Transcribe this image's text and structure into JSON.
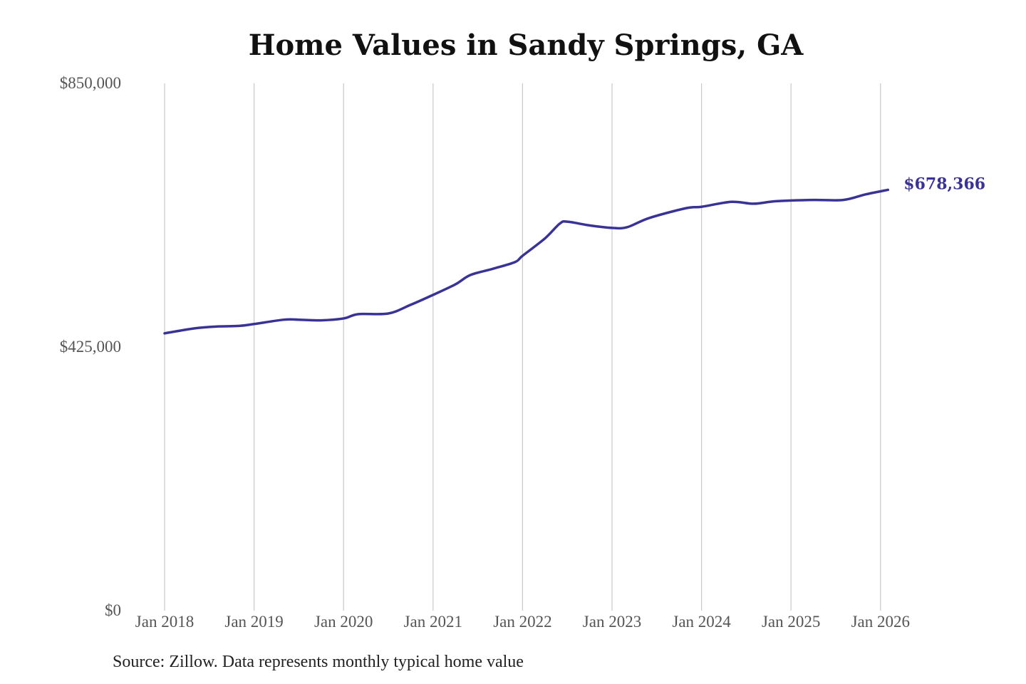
{
  "chart_data": {
    "type": "line",
    "title": "Home Values in Sandy Springs, GA",
    "source": "Source: Zillow. Data represents monthly typical home value",
    "xlabel": "",
    "ylabel": "",
    "ylim": [
      0,
      850000
    ],
    "yticks": [
      0,
      425000,
      850000
    ],
    "ytick_labels": [
      "$0",
      "$425,000",
      "$850,000"
    ],
    "xticks": [
      "2018-01",
      "2019-01",
      "2020-01",
      "2021-01",
      "2022-01",
      "2023-01",
      "2024-01",
      "2025-01",
      "2026-01"
    ],
    "xtick_labels": [
      "Jan 2018",
      "Jan 2019",
      "Jan 2020",
      "Jan 2021",
      "Jan 2022",
      "Jan 2023",
      "Jan 2024",
      "Jan 2025",
      "Jan 2026"
    ],
    "grid": "vertical",
    "line_color": "#3a3396",
    "end_label": "$678,366",
    "series": [
      {
        "points": [
          [
            "2018-01",
            447000
          ],
          [
            "2018-05",
            455000
          ],
          [
            "2018-08",
            458000
          ],
          [
            "2018-11",
            459000
          ],
          [
            "2019-01",
            462000
          ],
          [
            "2019-05",
            469000
          ],
          [
            "2019-07",
            469000
          ],
          [
            "2019-10",
            468000
          ],
          [
            "2020-01",
            471000
          ],
          [
            "2020-03",
            478000
          ],
          [
            "2020-07",
            479000
          ],
          [
            "2020-10",
            493000
          ],
          [
            "2021-01",
            509000
          ],
          [
            "2021-04",
            526000
          ],
          [
            "2021-06",
            541000
          ],
          [
            "2021-09",
            551000
          ],
          [
            "2021-12",
            562000
          ],
          [
            "2022-01",
            572000
          ],
          [
            "2022-04",
            600000
          ],
          [
            "2022-06",
            624000
          ],
          [
            "2022-07",
            627000
          ],
          [
            "2022-10",
            621000
          ],
          [
            "2023-01",
            617000
          ],
          [
            "2023-03",
            618000
          ],
          [
            "2023-06",
            633000
          ],
          [
            "2023-11",
            649000
          ],
          [
            "2024-01",
            651000
          ],
          [
            "2024-05",
            659000
          ],
          [
            "2024-08",
            656000
          ],
          [
            "2024-11",
            660000
          ],
          [
            "2025-04",
            662000
          ],
          [
            "2025-08",
            662000
          ],
          [
            "2025-11",
            671000
          ],
          [
            "2026-02",
            678366
          ]
        ]
      }
    ]
  }
}
